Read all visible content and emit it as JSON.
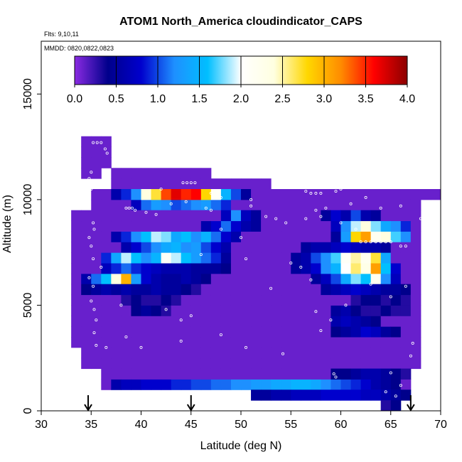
{
  "chart_data": {
    "type": "heatmap",
    "title": "ATOM1 North_America cloudindicator_CAPS",
    "subtitle_flights": "Flts: 9,10,11",
    "subtitle_dates": "MMDD: 0820,0822,0823",
    "xlabel": "Latitude (deg N)",
    "ylabel": "Altitude (m)",
    "xlim": [
      30,
      70
    ],
    "ylim": [
      0,
      17500
    ],
    "x_ticks": [
      30,
      35,
      40,
      45,
      50,
      55,
      60,
      65,
      70
    ],
    "y_ticks": [
      0,
      5000,
      10000,
      15000
    ],
    "colorbar": {
      "min": 0,
      "max": 4,
      "ticks": [
        "0.0",
        "0.5",
        "1.0",
        "1.5",
        "2.0",
        "2.5",
        "3.0",
        "3.5",
        "4.0"
      ],
      "stops": [
        "#8a2be2",
        "#00008b",
        "#0000cd",
        "#1e90ff",
        "#00bfff",
        "#ffffff",
        "#ffffe0",
        "#ffd700",
        "#ff8c00",
        "#ff0000",
        "#8b0000"
      ]
    },
    "cell_size": {
      "lat": 1,
      "alt_m": 500
    },
    "background_value": 0.1,
    "coverage": [
      {
        "lat": [
          37,
          47
        ],
        "alt": [
          10500,
          11500
        ]
      },
      {
        "lat": [
          47,
          53
        ],
        "alt": [
          10500,
          11000
        ]
      },
      {
        "lat": [
          35,
          67
        ],
        "alt": [
          9500,
          10500
        ]
      },
      {
        "lat": [
          67,
          70
        ],
        "alt": [
          10000,
          10500
        ]
      },
      {
        "lat": [
          34,
          36
        ],
        "alt": [
          11000,
          13000
        ]
      },
      {
        "lat": [
          36,
          37
        ],
        "alt": [
          11500,
          13000
        ]
      },
      {
        "lat": [
          33,
          35
        ],
        "alt": [
          6000,
          9500
        ]
      },
      {
        "lat": [
          35,
          67
        ],
        "alt": [
          6000,
          9500
        ]
      },
      {
        "lat": [
          67,
          68
        ],
        "alt": [
          6000,
          10000
        ]
      },
      {
        "lat": [
          33,
          68
        ],
        "alt": [
          3000,
          6000
        ]
      },
      {
        "lat": [
          34,
          68
        ],
        "alt": [
          2000,
          3000
        ]
      },
      {
        "lat": [
          36,
          67
        ],
        "alt": [
          1000,
          2000
        ]
      },
      {
        "lat": [
          51,
          67
        ],
        "alt": [
          500,
          1000
        ]
      },
      {
        "lat": [
          64,
          66
        ],
        "alt": [
          0,
          500
        ]
      }
    ],
    "features": [
      {
        "lat": [
          37,
          38
        ],
        "alt": [
          10000,
          10500
        ],
        "values": [
          0.6
        ]
      },
      {
        "lat": [
          38,
          50
        ],
        "alt": [
          10000,
          10500
        ],
        "values": [
          0.9,
          1.2,
          2.4,
          2.7,
          3.4,
          3.7,
          3.5,
          3.6,
          2.8,
          2.1,
          1.5,
          1.0
        ]
      },
      {
        "lat": [
          50,
          51
        ],
        "alt": [
          10000,
          10500
        ],
        "values": [
          0.5
        ]
      },
      {
        "lat": [
          39,
          49
        ],
        "alt": [
          9500,
          10000
        ],
        "values": [
          0.7,
          1.1,
          1.3,
          1.2,
          1.0,
          1.1,
          1.2,
          1.3,
          1.1,
          0.9
        ]
      },
      {
        "lat": [
          48,
          52
        ],
        "alt": [
          9000,
          9500
        ],
        "values": [
          0.7,
          1.2,
          0.7,
          0.5
        ]
      },
      {
        "lat": [
          58,
          64
        ],
        "alt": [
          9000,
          9500
        ],
        "values": [
          0.5,
          0.8,
          0.6,
          1.0,
          0.6,
          0.5
        ]
      },
      {
        "lat": [
          46,
          52
        ],
        "alt": [
          8500,
          9000
        ],
        "values": [
          0.6,
          0.8,
          1.1,
          0.8,
          0.6,
          0.5
        ]
      },
      {
        "lat": [
          59,
          67
        ],
        "alt": [
          8500,
          9000
        ],
        "values": [
          0.7,
          1.2,
          1.9,
          2.4,
          1.8,
          1.4,
          1.2,
          0.9
        ]
      },
      {
        "lat": [
          37,
          50
        ],
        "alt": [
          8000,
          8500
        ],
        "values": [
          0.6,
          0.9,
          1.2,
          1.6,
          1.9,
          1.8,
          1.4,
          1.6,
          1.2,
          1.5,
          1.1,
          0.8,
          0.6
        ]
      },
      {
        "lat": [
          59,
          67
        ],
        "alt": [
          8000,
          8500
        ],
        "values": [
          0.5,
          1.3,
          2.8,
          3.1,
          2.2,
          2.4,
          1.7,
          1.2
        ]
      },
      {
        "lat": [
          38,
          49
        ],
        "alt": [
          7500,
          8000
        ],
        "values": [
          0.6,
          0.8,
          1.0,
          1.2,
          1.4,
          1.5,
          1.2,
          1.3,
          1.0,
          0.8,
          0.6
        ]
      },
      {
        "lat": [
          56,
          65
        ],
        "alt": [
          7500,
          8000
        ],
        "values": [
          0.5,
          0.6,
          0.6,
          0.7,
          0.8,
          0.7,
          0.6,
          0.6,
          0.5
        ]
      },
      {
        "lat": [
          36,
          49
        ],
        "alt": [
          7000,
          7500
        ],
        "values": [
          0.9,
          1.4,
          1.9,
          1.6,
          1.2,
          1.5,
          2.1,
          1.9,
          1.6,
          1.3,
          1.1,
          0.9,
          0.5
        ]
      },
      {
        "lat": [
          55,
          65
        ],
        "alt": [
          7000,
          7500
        ],
        "values": [
          0.5,
          0.6,
          1.0,
          1.2,
          1.7,
          2.1,
          2.5,
          2.2,
          2.7,
          1.4
        ]
      },
      {
        "lat": [
          36,
          49
        ],
        "alt": [
          6500,
          7000
        ],
        "values": [
          0.7,
          0.9,
          1.1,
          0.9,
          0.8,
          0.7,
          0.6,
          0.6,
          0.6,
          0.5,
          0.5,
          0.5,
          0.4
        ]
      },
      {
        "lat": [
          55,
          66
        ],
        "alt": [
          6500,
          7000
        ],
        "values": [
          0.5,
          0.6,
          0.8,
          1.2,
          1.5,
          2.0,
          2.6,
          2.3,
          3.1,
          1.6,
          0.8
        ]
      },
      {
        "lat": [
          34,
          42
        ],
        "alt": [
          6000,
          6500
        ],
        "values": [
          0.6,
          1.1,
          1.6,
          2.4,
          3.0,
          1.3,
          0.8,
          0.6
        ]
      },
      {
        "lat": [
          42,
          47
        ],
        "alt": [
          6000,
          6500
        ],
        "values": [
          0.5,
          0.5,
          0.6,
          0.5,
          0.4
        ]
      },
      {
        "lat": [
          57,
          66
        ],
        "alt": [
          6000,
          6500
        ],
        "values": [
          0.5,
          0.7,
          1.0,
          1.4,
          1.8,
          1.6,
          2.2,
          1.2,
          0.7
        ]
      },
      {
        "lat": [
          34,
          46
        ],
        "alt": [
          5500,
          6000
        ],
        "values": [
          0.4,
          0.5,
          0.6,
          0.5,
          0.6,
          0.5,
          0.5,
          0.6,
          0.5,
          0.5,
          0.4,
          0.3
        ]
      },
      {
        "lat": [
          58,
          67
        ],
        "alt": [
          5500,
          6000
        ],
        "values": [
          0.5,
          0.6,
          0.7,
          0.8,
          0.7,
          0.6,
          0.5,
          0.5,
          0.4
        ]
      },
      {
        "lat": [
          38,
          44
        ],
        "alt": [
          5000,
          5500
        ],
        "values": [
          0.3,
          0.4,
          0.3,
          0.3,
          0.4,
          0.3
        ]
      },
      {
        "lat": [
          61,
          67
        ],
        "alt": [
          5000,
          5500
        ],
        "values": [
          0.3,
          0.4,
          0.4,
          0.3,
          0.4,
          0.3
        ]
      },
      {
        "lat": [
          39,
          43
        ],
        "alt": [
          4500,
          5000
        ],
        "values": [
          0.4,
          0.5,
          0.4,
          0.3
        ]
      },
      {
        "lat": [
          59,
          67
        ],
        "alt": [
          4500,
          5000
        ],
        "values": [
          0.5,
          0.6,
          0.4,
          0.3,
          0.3,
          0.4,
          0.3,
          0.3
        ]
      },
      {
        "lat": [
          59,
          64
        ],
        "alt": [
          4000,
          4500
        ],
        "values": [
          0.6,
          0.7,
          0.6,
          0.5,
          0.4
        ]
      },
      {
        "lat": [
          59,
          66
        ],
        "alt": [
          3500,
          4000
        ],
        "values": [
          0.4,
          0.5,
          0.6,
          0.8,
          0.7,
          0.5,
          0.4
        ]
      },
      {
        "lat": [
          59,
          67
        ],
        "alt": [
          1500,
          2000
        ],
        "values": [
          0.4,
          0.4,
          0.5,
          0.6,
          0.6,
          0.5,
          0.4,
          0.3
        ]
      },
      {
        "lat": [
          37,
          66
        ],
        "alt": [
          1000,
          1500
        ],
        "values": [
          0.6,
          0.7,
          0.7,
          0.8,
          0.8,
          0.8,
          0.9,
          0.9,
          1.0,
          1.0,
          1.1,
          1.1,
          1.2,
          1.2,
          1.3,
          1.3,
          1.4,
          1.4,
          1.5,
          1.5,
          1.4,
          1.2,
          1.1,
          1.0,
          0.9,
          0.8,
          0.6,
          0.5,
          0.4
        ]
      },
      {
        "lat": [
          51,
          67
        ],
        "alt": [
          500,
          1000
        ],
        "values": [
          0.5,
          0.5,
          0.6,
          0.6,
          0.7,
          0.7,
          0.7,
          0.8,
          0.8,
          0.8,
          0.8,
          0.7,
          0.7,
          0.6,
          0.5,
          0.4
        ]
      },
      {
        "lat": [
          64,
          66
        ],
        "alt": [
          0,
          500
        ],
        "values": [
          0.3,
          0.4
        ]
      }
    ],
    "arrows_lat": [
      34.7,
      45.0,
      67.0
    ],
    "obs_points": [
      [
        35.2,
        12700
      ],
      [
        35.6,
        12700
      ],
      [
        36.0,
        12700
      ],
      [
        36.4,
        12400
      ],
      [
        36.6,
        12200
      ],
      [
        35.0,
        11300
      ],
      [
        34.8,
        11000
      ],
      [
        35.0,
        10500
      ],
      [
        34.7,
        10200
      ],
      [
        44.2,
        10800
      ],
      [
        44.6,
        10800
      ],
      [
        45.0,
        10800
      ],
      [
        45.4,
        10800
      ],
      [
        42.0,
        10500
      ],
      [
        47.0,
        10300
      ],
      [
        48.0,
        10100
      ],
      [
        51.0,
        10000
      ],
      [
        38.5,
        9600
      ],
      [
        38.8,
        9600
      ],
      [
        39.1,
        9600
      ],
      [
        39.4,
        9500
      ],
      [
        40.5,
        9400
      ],
      [
        41.5,
        9300
      ],
      [
        46.5,
        9600
      ],
      [
        47.0,
        9500
      ],
      [
        52.5,
        9200
      ],
      [
        53.5,
        9100
      ],
      [
        54.5,
        8900
      ],
      [
        56.5,
        9100
      ],
      [
        57.5,
        9500
      ],
      [
        58.0,
        9200
      ],
      [
        60.0,
        8900
      ],
      [
        61.5,
        8600
      ],
      [
        62.0,
        8000
      ],
      [
        62.5,
        8000
      ],
      [
        63.0,
        8000
      ],
      [
        63.5,
        8000
      ],
      [
        64.0,
        8000
      ],
      [
        64.5,
        8000
      ],
      [
        65.0,
        8000
      ],
      [
        66.0,
        7800
      ],
      [
        66.5,
        7800
      ],
      [
        56.5,
        10400
      ],
      [
        57.0,
        10300
      ],
      [
        57.5,
        10300
      ],
      [
        58.0,
        10300
      ],
      [
        59.5,
        10400
      ],
      [
        60.0,
        10500
      ],
      [
        60.5,
        10600
      ],
      [
        66.5,
        10600
      ],
      [
        67.2,
        10600
      ],
      [
        43.0,
        9800
      ],
      [
        44.5,
        9900
      ],
      [
        35.2,
        8900
      ],
      [
        35.3,
        8600
      ],
      [
        34.8,
        8200
      ],
      [
        35.0,
        7800
      ],
      [
        35.2,
        7200
      ],
      [
        36.0,
        6800
      ],
      [
        34.8,
        6300
      ],
      [
        35.2,
        5900
      ],
      [
        35.0,
        5200
      ],
      [
        35.3,
        4800
      ],
      [
        35.5,
        4300
      ],
      [
        35.3,
        3700
      ],
      [
        35.5,
        3100
      ],
      [
        36.5,
        3000
      ],
      [
        38.5,
        3500
      ],
      [
        42.5,
        4800
      ],
      [
        44.0,
        4300
      ],
      [
        45.0,
        4500
      ],
      [
        48.0,
        3600
      ],
      [
        50.5,
        3000
      ],
      [
        54.2,
        2700
      ],
      [
        57.5,
        4700
      ],
      [
        59.0,
        4300
      ],
      [
        58.0,
        3800
      ],
      [
        59.3,
        1750
      ],
      [
        59.5,
        1600
      ],
      [
        67.2,
        3200
      ],
      [
        67.0,
        2600
      ],
      [
        65.0,
        1800
      ],
      [
        66.0,
        1200
      ],
      [
        64.5,
        900
      ],
      [
        65.5,
        700
      ],
      [
        55.0,
        7000
      ],
      [
        56.0,
        6800
      ],
      [
        57.0,
        6200
      ],
      [
        53.0,
        5800
      ],
      [
        50.5,
        7200
      ],
      [
        46.0,
        7400
      ],
      [
        48.0,
        8600
      ],
      [
        50.0,
        8200
      ],
      [
        51.0,
        9700
      ],
      [
        58.5,
        9600
      ],
      [
        61.0,
        9800
      ],
      [
        62.5,
        10100
      ],
      [
        64.0,
        9600
      ],
      [
        66.0,
        9700
      ],
      [
        68.0,
        9100
      ],
      [
        63.0,
        6000
      ],
      [
        66.5,
        5900
      ],
      [
        65.0,
        5400
      ],
      [
        60.5,
        5000
      ],
      [
        38.0,
        5000
      ],
      [
        40.0,
        3000
      ],
      [
        44.0,
        3300
      ],
      [
        48.0,
        12100
      ],
      [
        48.3,
        12100
      ]
    ]
  }
}
